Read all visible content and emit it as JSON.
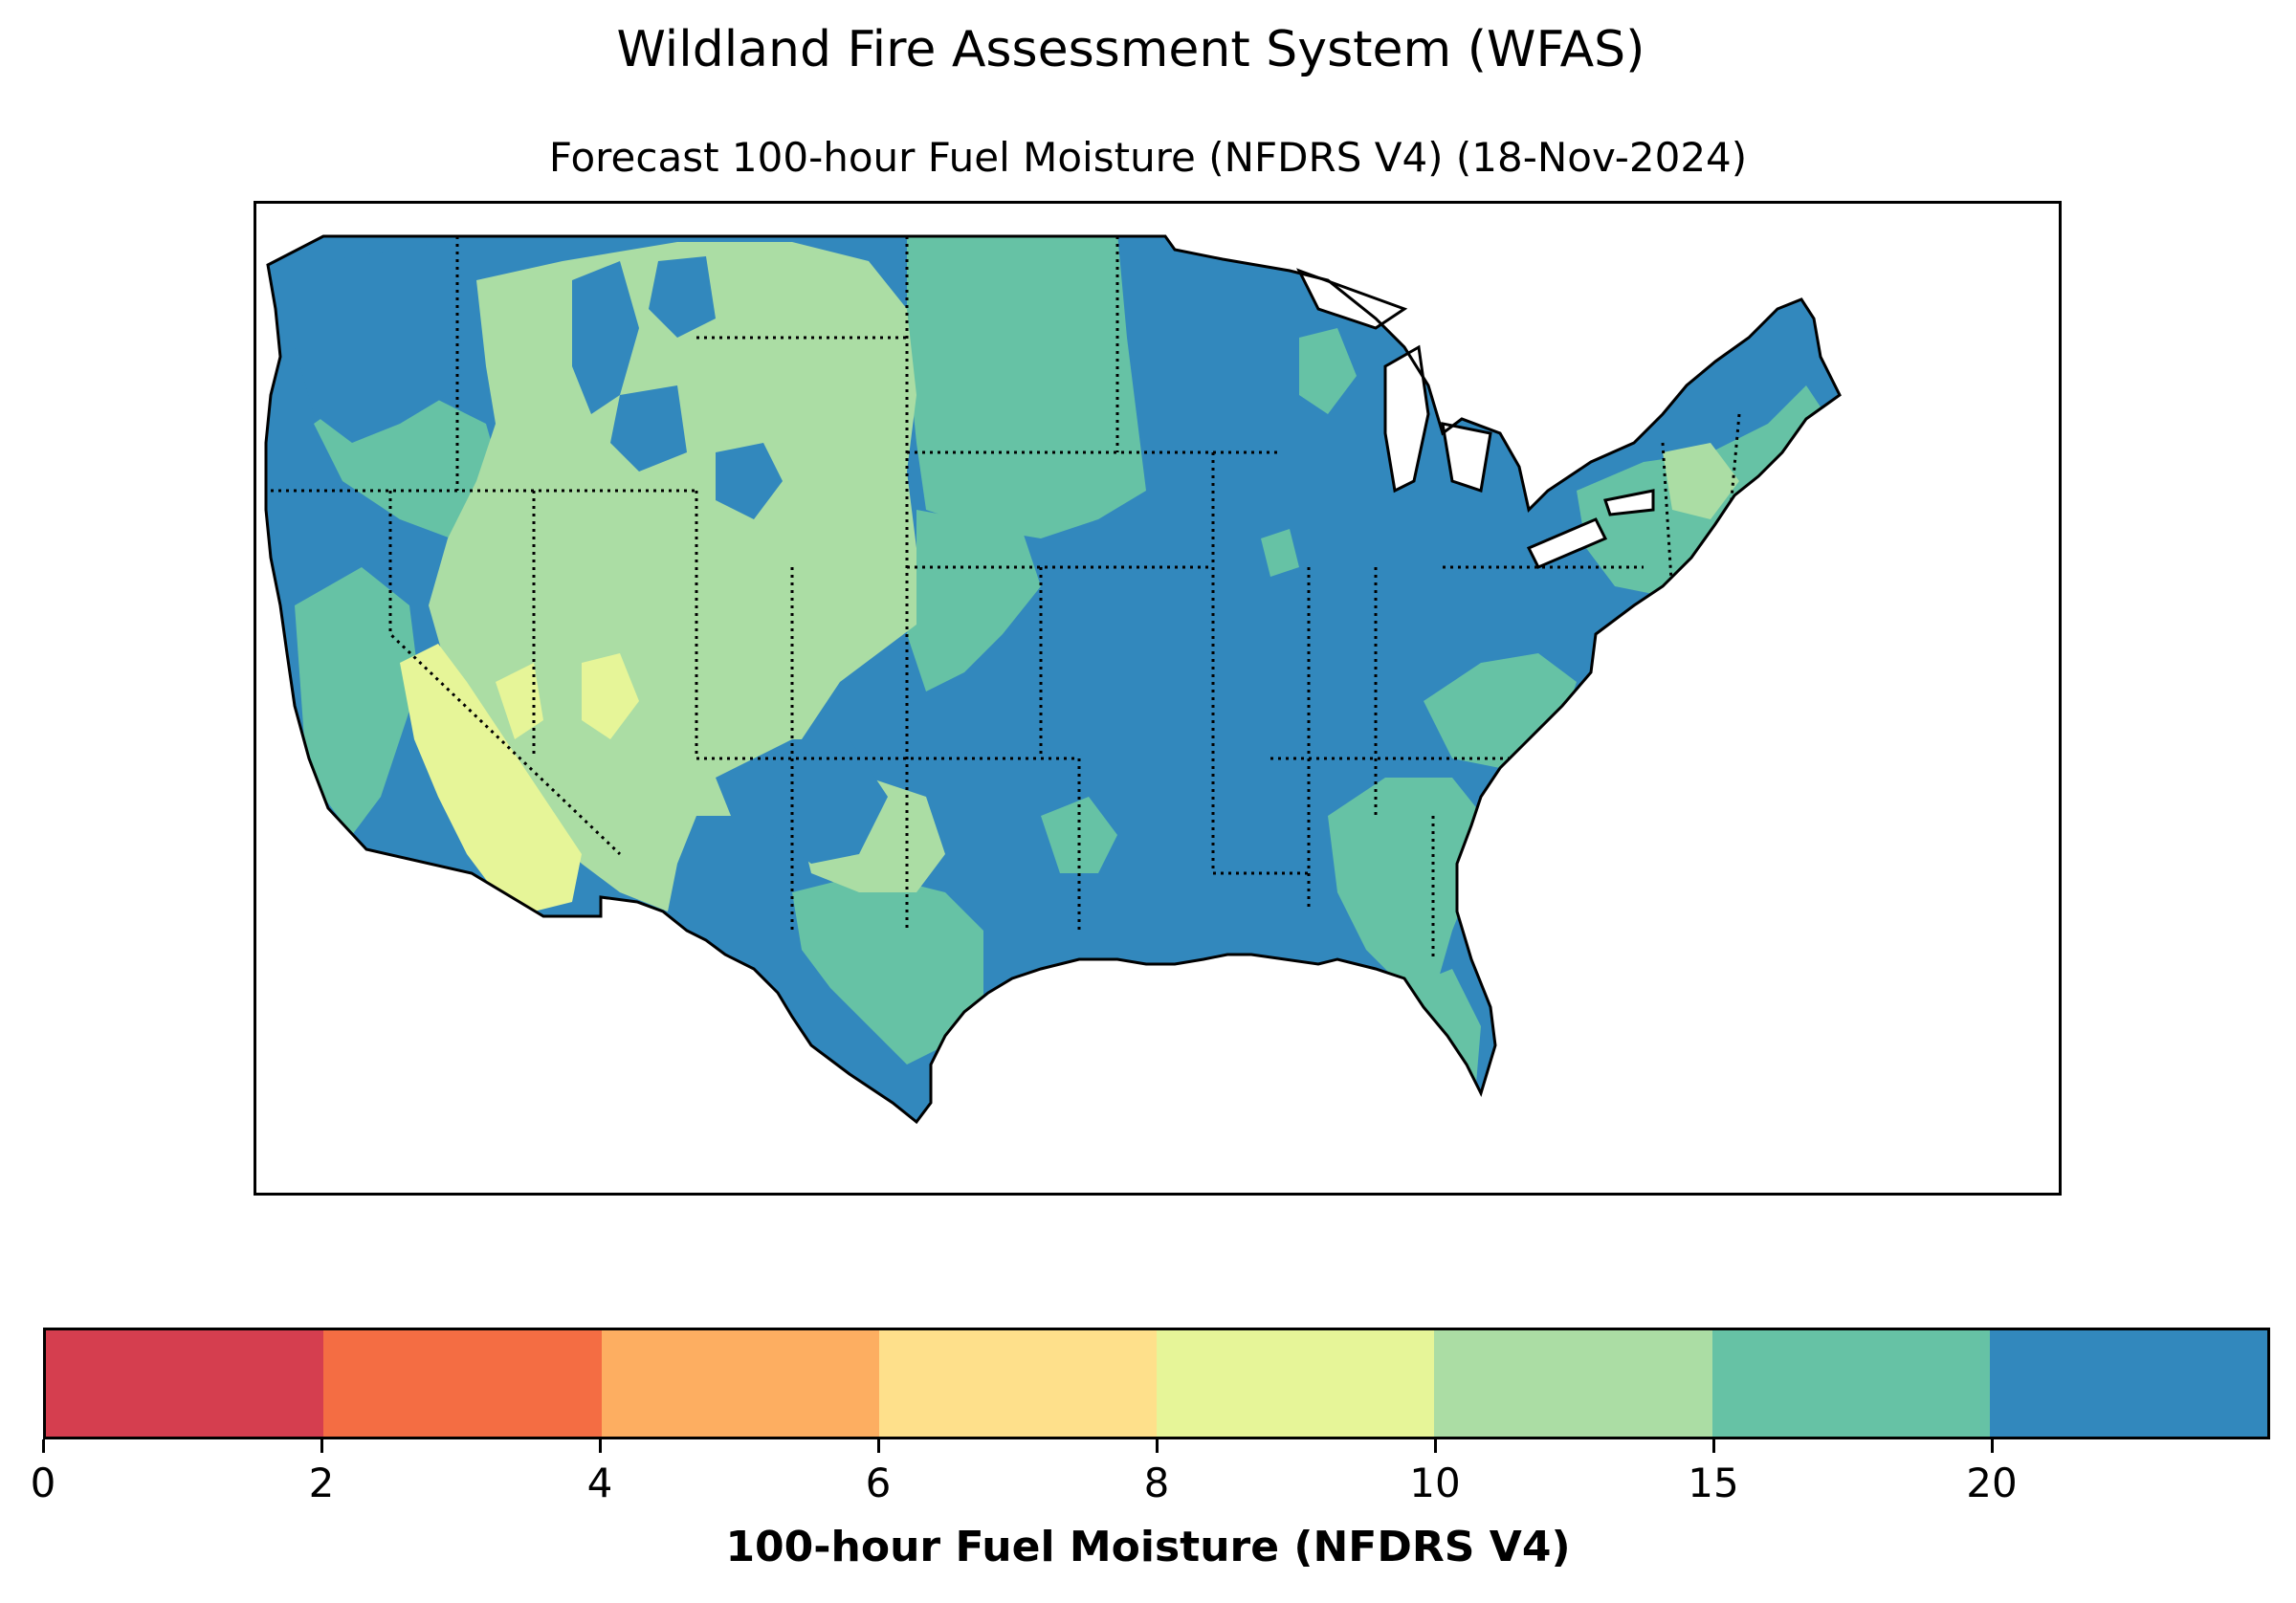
{
  "figure": {
    "suptitle": "Wildland Fire Assessment System (WFAS)",
    "title": "Forecast 100-hour Fuel Moisture (NFDRS V4) (18-Nov-2024)"
  },
  "colorbar": {
    "label": "100-hour Fuel Moisture (NFDRS V4)",
    "bins": [
      {
        "from": 0,
        "to": 2,
        "color": "#d53e4f"
      },
      {
        "from": 2,
        "to": 4,
        "color": "#f46d43"
      },
      {
        "from": 4,
        "to": 6,
        "color": "#fdae61"
      },
      {
        "from": 6,
        "to": 8,
        "color": "#fee08b"
      },
      {
        "from": 8,
        "to": 10,
        "color": "#e6f598"
      },
      {
        "from": 10,
        "to": 15,
        "color": "#abdda4"
      },
      {
        "from": 15,
        "to": 20,
        "color": "#66c2a5"
      },
      {
        "from": 20,
        "to": null,
        "color": "#3288bd"
      }
    ],
    "tick_labels": [
      "0",
      "2",
      "4",
      "6",
      "8",
      "10",
      "15",
      "20"
    ]
  },
  "map": {
    "region": "Contiguous United States",
    "colors": {
      "very_moist": "#3288bd",
      "moist": "#66c2a5",
      "moderate": "#abdda4",
      "dry": "#e6f598",
      "border": "#000000"
    }
  }
}
